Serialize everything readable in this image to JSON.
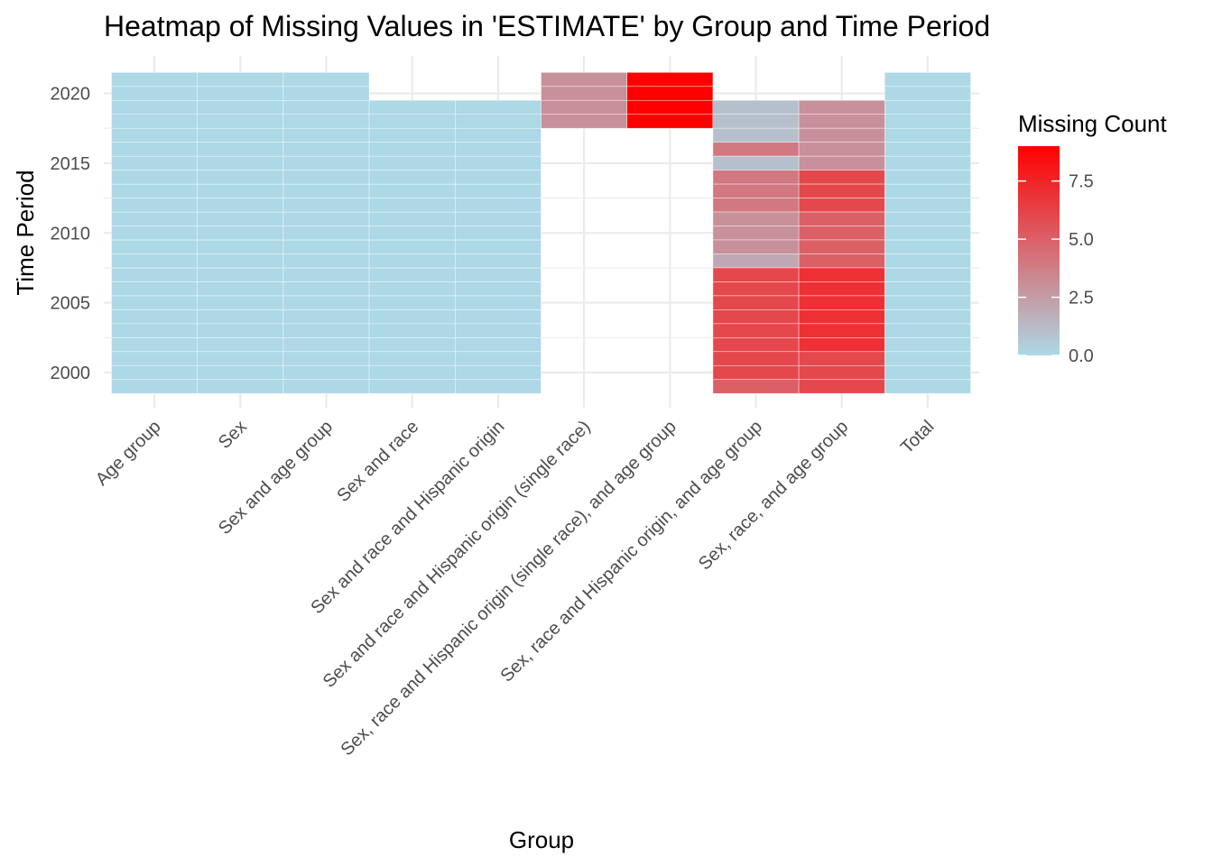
{
  "chart_data": {
    "type": "heatmap",
    "title": "Heatmap of Missing Values in 'ESTIMATE' by Group and Time Period",
    "xlabel": "Group",
    "ylabel": "Time Period",
    "categories": [
      "Age group",
      "Sex",
      "Sex and age group",
      "Sex and race",
      "Sex and race and Hispanic origin",
      "Sex and race and Hispanic origin (single race)",
      "Sex, race and Hispanic origin (single race), and age group",
      "Sex, race and Hispanic origin, and age group",
      "Sex, race, and age group",
      "Total"
    ],
    "y_ticks": [
      2000,
      2005,
      2010,
      2015,
      2020
    ],
    "ylim": [
      1998.5,
      2021.5
    ],
    "legend": {
      "title": "Missing Count",
      "ticks": [
        "0.0",
        "2.5",
        "5.0",
        "7.5"
      ],
      "min": 0,
      "max": 9,
      "low_color": "#add8e6",
      "high_color": "#ff0000",
      "position": "right"
    },
    "grid": true,
    "series": [
      {
        "group": "Age group",
        "years": [
          1999,
          2021
        ],
        "counts": "all 0"
      },
      {
        "group": "Sex",
        "years": [
          1999,
          2021
        ],
        "counts": "all 0"
      },
      {
        "group": "Sex and age group",
        "years": [
          1999,
          2021
        ],
        "counts": "all 0"
      },
      {
        "group": "Sex and race",
        "years": [
          1999,
          2019
        ],
        "counts": "all 0"
      },
      {
        "group": "Sex and race and Hispanic origin",
        "years": [
          1999,
          2019
        ],
        "counts": "all 0"
      },
      {
        "group": "Sex and race and Hispanic origin (single race)",
        "years": [
          2018,
          2021
        ],
        "counts": "all 3"
      },
      {
        "group": "Sex, race and Hispanic origin (single race), and age group",
        "years": [
          2018,
          2021
        ],
        "counts": "all 9"
      },
      {
        "group": "Total",
        "years": [
          1999,
          2021
        ],
        "counts": "all 0"
      }
    ],
    "cells_race_hisp_age": {
      "group": "Sex, race and Hispanic origin, and age group",
      "values": [
        [
          2019,
          1
        ],
        [
          2018,
          1
        ],
        [
          2017,
          1
        ],
        [
          2016,
          4
        ],
        [
          2015,
          1
        ],
        [
          2014,
          4
        ],
        [
          2013,
          4
        ],
        [
          2012,
          4
        ],
        [
          2011,
          3
        ],
        [
          2010,
          3
        ],
        [
          2009,
          3
        ],
        [
          2008,
          2
        ],
        [
          2007,
          6
        ],
        [
          2006,
          6
        ],
        [
          2005,
          6
        ],
        [
          2004,
          6
        ],
        [
          2003,
          6
        ],
        [
          2002,
          6
        ],
        [
          2001,
          6
        ],
        [
          2000,
          6
        ],
        [
          1999,
          5
        ]
      ]
    },
    "cells_race_age": {
      "group": "Sex, race, and age group",
      "values": [
        [
          2019,
          3
        ],
        [
          2018,
          3
        ],
        [
          2017,
          3
        ],
        [
          2016,
          3
        ],
        [
          2015,
          3
        ],
        [
          2014,
          6
        ],
        [
          2013,
          6
        ],
        [
          2012,
          6
        ],
        [
          2011,
          5
        ],
        [
          2010,
          5
        ],
        [
          2009,
          5
        ],
        [
          2008,
          5
        ],
        [
          2007,
          7
        ],
        [
          2006,
          7
        ],
        [
          2005,
          7
        ],
        [
          2004,
          7
        ],
        [
          2003,
          7
        ],
        [
          2002,
          7
        ],
        [
          2001,
          6
        ],
        [
          2000,
          6
        ],
        [
          1999,
          6
        ]
      ]
    }
  }
}
